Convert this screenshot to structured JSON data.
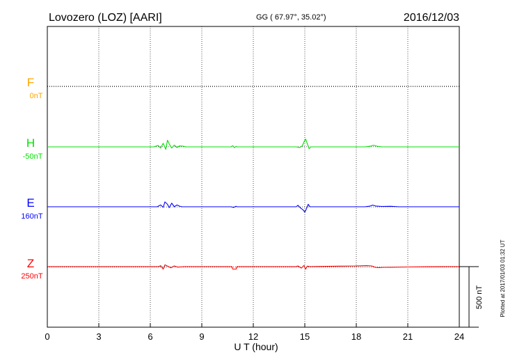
{
  "header": {
    "station": "Lovozero (LOZ)  [AARI]",
    "coords": "GG ( 67.97°,  35.02°)",
    "date": "2016/12/03"
  },
  "footer": {
    "plotted": "Plotted at 2017/01/03 01:32 UT"
  },
  "colors": {
    "F": "#ffa500",
    "H": "#00e000",
    "E": "#0000ff",
    "Z": "#ff0000"
  },
  "chart_data": {
    "type": "line",
    "xlabel": "U T (hour)",
    "xlim": [
      0,
      24
    ],
    "x_ticks": [
      "0",
      "3",
      "6",
      "9",
      "12",
      "15",
      "18",
      "21",
      "24"
    ],
    "grid": true,
    "scale_bar": {
      "label": "500 nT",
      "value_nT": 500
    },
    "series": [
      {
        "name": "F",
        "baseline_label": "0nT",
        "points": []
      },
      {
        "name": "H",
        "baseline_label": "-50nT",
        "points": [
          [
            0,
            0
          ],
          [
            6.2,
            0
          ],
          [
            6.45,
            -12
          ],
          [
            6.6,
            10
          ],
          [
            6.75,
            -30
          ],
          [
            6.9,
            20
          ],
          [
            7.0,
            -55
          ],
          [
            7.1,
            -25
          ],
          [
            7.25,
            10
          ],
          [
            7.4,
            -15
          ],
          [
            7.55,
            6
          ],
          [
            7.7,
            -8
          ],
          [
            7.9,
            -6
          ],
          [
            8.1,
            0
          ],
          [
            10.7,
            0
          ],
          [
            10.8,
            -10
          ],
          [
            10.9,
            6
          ],
          [
            11.0,
            -4
          ],
          [
            11.05,
            0
          ],
          [
            14.5,
            0
          ],
          [
            14.7,
            5
          ],
          [
            14.85,
            -8
          ],
          [
            14.95,
            -40
          ],
          [
            15.05,
            -65
          ],
          [
            15.15,
            -25
          ],
          [
            15.25,
            15
          ],
          [
            15.35,
            0
          ],
          [
            18.5,
            0
          ],
          [
            18.8,
            -5
          ],
          [
            19.0,
            -14
          ],
          [
            19.2,
            -6
          ],
          [
            19.5,
            0
          ],
          [
            24,
            0
          ]
        ]
      },
      {
        "name": "E",
        "baseline_label": "160nT",
        "points": [
          [
            0,
            0
          ],
          [
            6.4,
            0
          ],
          [
            6.6,
            -15
          ],
          [
            6.75,
            5
          ],
          [
            6.85,
            -40
          ],
          [
            7.0,
            -20
          ],
          [
            7.1,
            8
          ],
          [
            7.25,
            -30
          ],
          [
            7.4,
            0
          ],
          [
            7.55,
            -15
          ],
          [
            7.7,
            -5
          ],
          [
            7.85,
            0
          ],
          [
            10.7,
            0
          ],
          [
            10.85,
            6
          ],
          [
            11.0,
            -4
          ],
          [
            11.05,
            0
          ],
          [
            14.5,
            0
          ],
          [
            14.6,
            -12
          ],
          [
            14.75,
            10
          ],
          [
            14.9,
            25
          ],
          [
            15.0,
            45
          ],
          [
            15.1,
            15
          ],
          [
            15.2,
            -20
          ],
          [
            15.3,
            0
          ],
          [
            18.5,
            0
          ],
          [
            18.8,
            -5
          ],
          [
            18.95,
            -14
          ],
          [
            19.15,
            -5
          ],
          [
            19.5,
            -3
          ],
          [
            20.0,
            -4
          ],
          [
            20.5,
            0
          ],
          [
            24,
            0
          ]
        ]
      },
      {
        "name": "Z",
        "baseline_label": "250nT",
        "points": [
          [
            0,
            0
          ],
          [
            6.5,
            0
          ],
          [
            6.6,
            -8
          ],
          [
            6.75,
            20
          ],
          [
            6.85,
            -15
          ],
          [
            7.0,
            -4
          ],
          [
            7.2,
            10
          ],
          [
            7.4,
            -6
          ],
          [
            7.6,
            4
          ],
          [
            8.0,
            0
          ],
          [
            10.75,
            0
          ],
          [
            10.8,
            20
          ],
          [
            11.0,
            20
          ],
          [
            11.05,
            0
          ],
          [
            14.5,
            0
          ],
          [
            14.6,
            -6
          ],
          [
            14.8,
            12
          ],
          [
            14.95,
            -10
          ],
          [
            15.05,
            20
          ],
          [
            15.15,
            -4
          ],
          [
            15.3,
            0
          ],
          [
            16.0,
            -2
          ],
          [
            17.0,
            -4
          ],
          [
            18.0,
            -5
          ],
          [
            18.6,
            -8
          ],
          [
            18.9,
            -6
          ],
          [
            19.1,
            6
          ],
          [
            19.3,
            8
          ],
          [
            19.6,
            6
          ],
          [
            20.0,
            5
          ],
          [
            21.0,
            3
          ],
          [
            22.0,
            1
          ],
          [
            24,
            0
          ]
        ]
      }
    ]
  }
}
